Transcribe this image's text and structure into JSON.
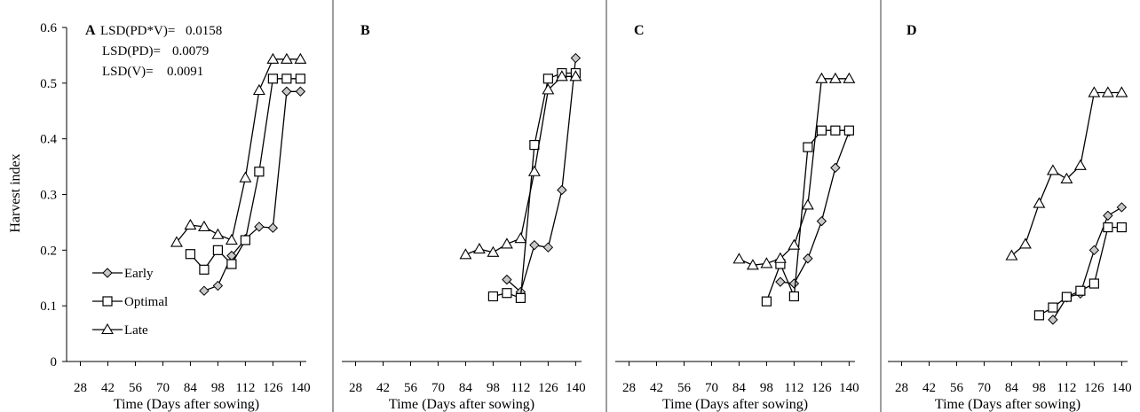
{
  "figure": {
    "ylabel": "Harvest index",
    "xlabel": "Time (Days after sowing)",
    "lsd": [
      {
        "label": "LSD(PD*V)=",
        "value": "0.0158"
      },
      {
        "label": "LSD(PD)=",
        "value": "0.0079"
      },
      {
        "label": "LSD(V)=",
        "value": "0.0091"
      }
    ],
    "legend": [
      {
        "name": "Early",
        "marker": "diamond"
      },
      {
        "name": "Optimal",
        "marker": "square"
      },
      {
        "name": "Late",
        "marker": "triangle"
      }
    ],
    "colors": {
      "line": "#000000",
      "diamond_fill": "#c8c8c8",
      "divider": "#7f7f7f"
    }
  },
  "chart_data": [
    {
      "type": "line",
      "panel": "A",
      "xlabel": "Time (Days after sowing)",
      "ylabel": "Harvest index",
      "xticks": [
        "28",
        "42",
        "56",
        "70",
        "84",
        "98",
        "112",
        "126",
        "140"
      ],
      "yticks": [
        "0",
        "0.1",
        "0.2",
        "0.3",
        "0.4",
        "0.5",
        "0.6"
      ],
      "xlim": [
        21,
        143
      ],
      "ylim": [
        0,
        0.6
      ],
      "series": [
        {
          "name": "Early",
          "x": [
            91,
            98,
            105,
            112,
            119,
            126,
            133,
            140
          ],
          "y": [
            0.127,
            0.136,
            0.19,
            0.22,
            0.242,
            0.24,
            0.485,
            0.485
          ]
        },
        {
          "name": "Optimal",
          "x": [
            84,
            91,
            98,
            105,
            112,
            119,
            126,
            133,
            140
          ],
          "y": [
            0.193,
            0.165,
            0.2,
            0.175,
            0.218,
            0.341,
            0.508,
            0.508,
            0.508
          ]
        },
        {
          "name": "Late",
          "x": [
            77,
            84,
            91,
            98,
            105,
            112,
            119,
            126,
            133,
            140
          ],
          "y": [
            0.214,
            0.245,
            0.242,
            0.228,
            0.218,
            0.33,
            0.487,
            0.543,
            0.543,
            0.543
          ]
        }
      ]
    },
    {
      "type": "line",
      "panel": "B",
      "xlabel": "Time (Days after sowing)",
      "xticks": [
        "28",
        "42",
        "56",
        "70",
        "84",
        "98",
        "112",
        "126",
        "140"
      ],
      "xlim": [
        21,
        143
      ],
      "ylim": [
        0,
        0.6
      ],
      "series": [
        {
          "name": "Early",
          "x": [
            105,
            112,
            119,
            126,
            133,
            140
          ],
          "y": [
            0.147,
            0.125,
            0.209,
            0.205,
            0.308,
            0.545
          ]
        },
        {
          "name": "Optimal",
          "x": [
            98,
            105,
            112,
            119,
            126,
            133,
            140
          ],
          "y": [
            0.117,
            0.123,
            0.114,
            0.389,
            0.508,
            0.518,
            0.518
          ]
        },
        {
          "name": "Late",
          "x": [
            84,
            91,
            98,
            105,
            112,
            119,
            126,
            133,
            140
          ],
          "y": [
            0.192,
            0.202,
            0.196,
            0.211,
            0.221,
            0.341,
            0.488,
            0.512,
            0.512
          ]
        }
      ]
    },
    {
      "type": "line",
      "panel": "C",
      "xlabel": "Time (Days after sowing)",
      "xticks": [
        "28",
        "42",
        "56",
        "70",
        "84",
        "98",
        "112",
        "126",
        "140"
      ],
      "xlim": [
        21,
        143
      ],
      "ylim": [
        0,
        0.6
      ],
      "series": [
        {
          "name": "Early",
          "x": [
            105,
            112,
            119,
            126,
            133,
            140
          ],
          "y": [
            0.143,
            0.14,
            0.185,
            0.252,
            0.348,
            0.413
          ]
        },
        {
          "name": "Optimal",
          "x": [
            98,
            105,
            112,
            119,
            126,
            133,
            140
          ],
          "y": [
            0.108,
            0.175,
            0.117,
            0.385,
            0.415,
            0.415,
            0.415
          ]
        },
        {
          "name": "Late",
          "x": [
            84,
            91,
            98,
            105,
            112,
            119,
            126,
            133,
            140
          ],
          "y": [
            0.184,
            0.173,
            0.176,
            0.185,
            0.209,
            0.281,
            0.508,
            0.508,
            0.508
          ]
        }
      ]
    },
    {
      "type": "line",
      "panel": "D",
      "xlabel": "Time (Days after sowing)",
      "xticks": [
        "28",
        "42",
        "56",
        "70",
        "84",
        "98",
        "112",
        "126",
        "140"
      ],
      "xlim": [
        21,
        143
      ],
      "ylim": [
        0,
        0.6
      ],
      "series": [
        {
          "name": "Early",
          "x": [
            105,
            112,
            119,
            126,
            133,
            140
          ],
          "y": [
            0.075,
            0.115,
            0.122,
            0.2,
            0.262,
            0.277
          ]
        },
        {
          "name": "Optimal",
          "x": [
            98,
            105,
            112,
            119,
            126,
            133,
            140
          ],
          "y": [
            0.083,
            0.097,
            0.116,
            0.127,
            0.14,
            0.241,
            0.241
          ]
        },
        {
          "name": "Late",
          "x": [
            84,
            91,
            98,
            105,
            112,
            119,
            126,
            133,
            140
          ],
          "y": [
            0.19,
            0.211,
            0.284,
            0.343,
            0.328,
            0.352,
            0.483,
            0.483,
            0.483
          ]
        }
      ]
    }
  ]
}
